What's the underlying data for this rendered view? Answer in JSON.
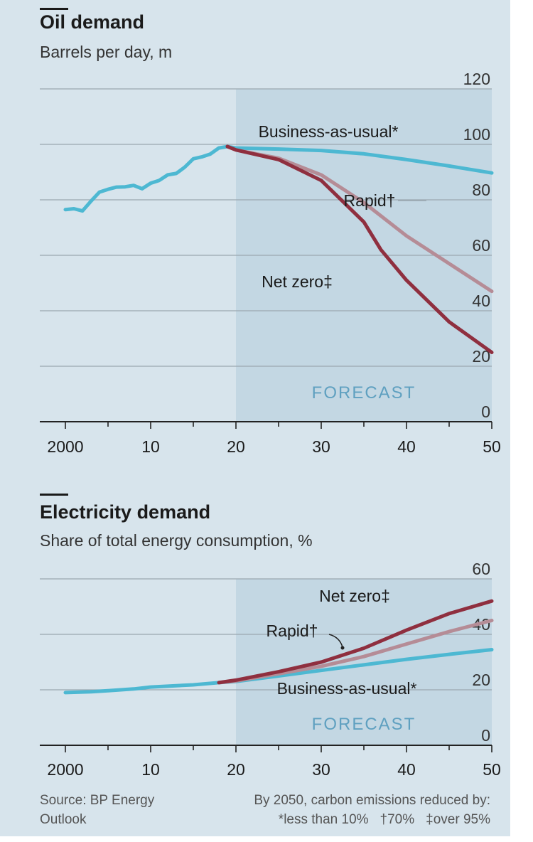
{
  "colors": {
    "background": "#d7e4ec",
    "forecast_band": "#c3d7e3",
    "gridline": "#9aa7b0",
    "axis": "#222222",
    "business_as_usual": "#4db8d2",
    "rapid": "#b58c96",
    "net_zero": "#8f2f3f",
    "forecast_text": "#5fa0c0"
  },
  "footer": {
    "source": "Source: BP Energy Outlook",
    "note_title": "By 2050, carbon emissions reduced by:",
    "notes": [
      "*less than 10%",
      "†70%",
      "‡over 95%"
    ]
  },
  "chart_data": [
    {
      "type": "line",
      "title": "Oil demand",
      "subtitle": "Barrels per day, m",
      "xlim": [
        1997,
        2050
      ],
      "ylim": [
        0,
        120
      ],
      "y_ticks": [
        0,
        20,
        40,
        60,
        80,
        100,
        120
      ],
      "x_ticks": [
        2000,
        2010,
        2020,
        2030,
        2040,
        2050
      ],
      "x_tick_labels": [
        "2000",
        "10",
        "20",
        "30",
        "40",
        "50"
      ],
      "grid": true,
      "forecast": {
        "from": 2020,
        "to": 2050,
        "label": "FORECAST"
      },
      "series": [
        {
          "name": "Business-as-usual*",
          "color_key": "business_as_usual",
          "x": [
            2000,
            2001,
            2002,
            2003,
            2004,
            2005,
            2006,
            2007,
            2008,
            2009,
            2010,
            2011,
            2012,
            2013,
            2014,
            2015,
            2016,
            2017,
            2018,
            2019,
            2020,
            2025,
            2030,
            2035,
            2040,
            2045,
            2050
          ],
          "values": [
            76.5,
            76.8,
            76.0,
            79.5,
            82.8,
            83.8,
            84.6,
            84.7,
            85.2,
            84.0,
            86.0,
            87.0,
            89.0,
            89.5,
            91.8,
            94.8,
            95.5,
            96.5,
            98.7,
            99.2,
            98.7,
            98.3,
            97.8,
            96.6,
            94.5,
            92.2,
            89.7
          ]
        },
        {
          "name": "Rapid†",
          "color_key": "rapid",
          "x": [
            2019,
            2020,
            2025,
            2030,
            2035,
            2040,
            2045,
            2050
          ],
          "values": [
            99.2,
            98.0,
            95.0,
            89.0,
            79.0,
            67.0,
            57.0,
            47.0
          ]
        },
        {
          "name": "Net zero‡",
          "color_key": "net_zero",
          "x": [
            2019,
            2020,
            2025,
            2030,
            2035,
            2037,
            2040,
            2045,
            2050
          ],
          "values": [
            99.2,
            98.0,
            94.5,
            87.0,
            72.0,
            62.0,
            51.0,
            36.0,
            25.0
          ]
        }
      ]
    },
    {
      "type": "line",
      "title": "Electricity demand",
      "subtitle": "Share of total energy consumption, %",
      "xlim": [
        1997,
        2050
      ],
      "ylim": [
        0,
        60
      ],
      "y_ticks": [
        0,
        20,
        40,
        60
      ],
      "x_ticks": [
        2000,
        2010,
        2020,
        2030,
        2040,
        2050
      ],
      "x_tick_labels": [
        "2000",
        "10",
        "20",
        "30",
        "40",
        "50"
      ],
      "grid": true,
      "forecast": {
        "from": 2020,
        "to": 2050,
        "label": "FORECAST"
      },
      "series": [
        {
          "name": "Business-as-usual*",
          "color_key": "business_as_usual",
          "x": [
            2000,
            2003,
            2005,
            2008,
            2010,
            2015,
            2018,
            2020,
            2025,
            2030,
            2035,
            2040,
            2045,
            2050
          ],
          "values": [
            19.0,
            19.3,
            19.7,
            20.3,
            21.0,
            21.8,
            22.6,
            23.0,
            25.0,
            27.0,
            29.0,
            31.0,
            32.8,
            34.5
          ]
        },
        {
          "name": "Rapid†",
          "color_key": "rapid",
          "x": [
            2018,
            2020,
            2025,
            2030,
            2035,
            2040,
            2045,
            2050
          ],
          "values": [
            22.6,
            23.2,
            25.8,
            28.5,
            32.0,
            36.5,
            41.0,
            45.0
          ]
        },
        {
          "name": "Net zero‡",
          "color_key": "net_zero",
          "x": [
            2018,
            2020,
            2025,
            2030,
            2035,
            2040,
            2045,
            2050
          ],
          "values": [
            22.6,
            23.5,
            26.5,
            30.0,
            35.0,
            41.5,
            47.5,
            52.0
          ]
        }
      ]
    }
  ]
}
